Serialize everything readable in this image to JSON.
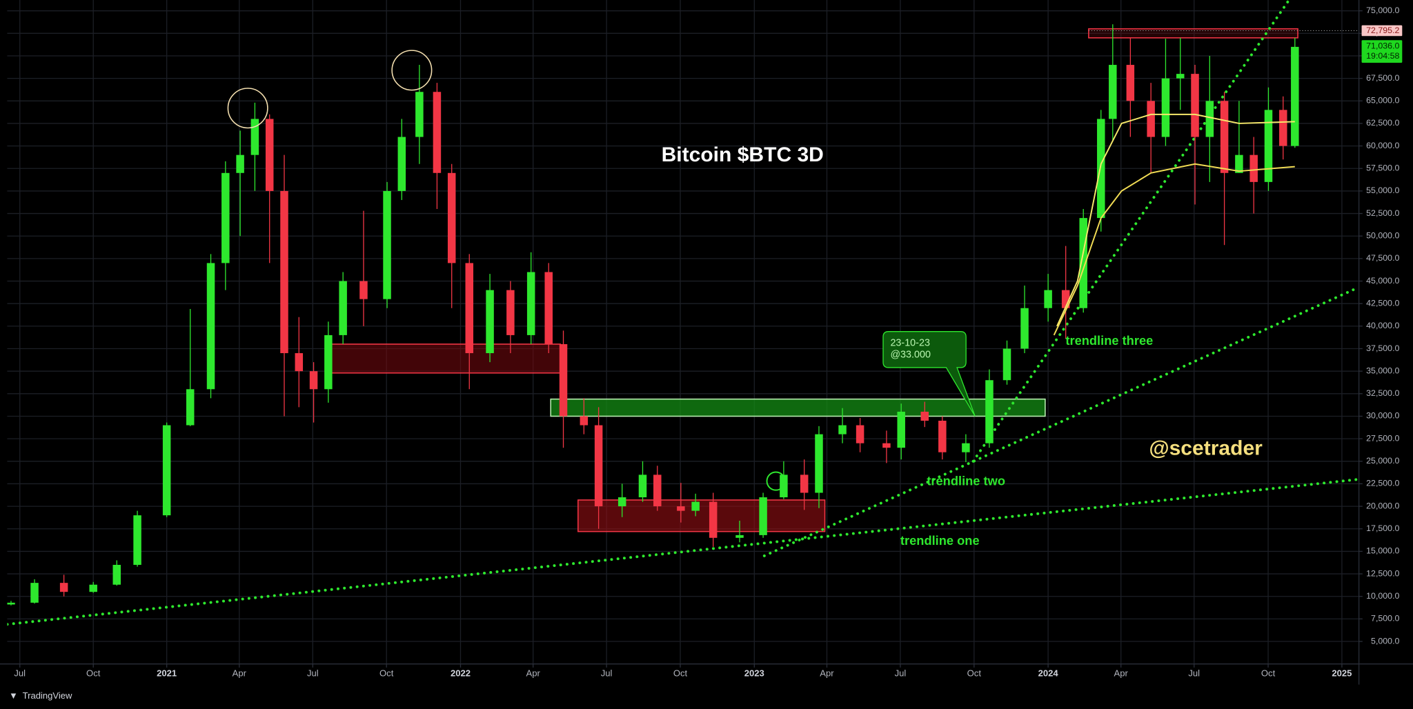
{
  "chart_data": {
    "type": "candlestick",
    "title": "Bitcoin $BTC 3D",
    "watermark": "@scetrader",
    "up_color": "#2ee82e",
    "down_color": "#f23645",
    "grid": true,
    "xlim": [
      2020.457,
      2025.058
    ],
    "ylim": [
      2500,
      76200
    ],
    "xticks": [
      {
        "value": 2020.5,
        "label": "Jul"
      },
      {
        "value": 2020.75,
        "label": "Oct"
      },
      2021,
      {
        "value": 2021.247,
        "label": "Apr"
      },
      {
        "value": 2021.497,
        "label": "Jul"
      },
      {
        "value": 2021.748,
        "label": "Oct"
      },
      2022,
      {
        "value": 2022.247,
        "label": "Apr"
      },
      {
        "value": 2022.497,
        "label": "Jul"
      },
      {
        "value": 2022.748,
        "label": "Oct"
      },
      2023,
      {
        "value": 2023.247,
        "label": "Apr"
      },
      {
        "value": 2023.497,
        "label": "Jul"
      },
      {
        "value": 2023.748,
        "label": "Oct"
      },
      2024,
      {
        "value": 2024.248,
        "label": "Apr"
      },
      {
        "value": 2024.497,
        "label": "Jul"
      },
      {
        "value": 2024.749,
        "label": "Oct"
      },
      2025
    ],
    "yticks": [
      {
        "value": 5000,
        "label": "5,000.0"
      },
      {
        "value": 7500,
        "label": "7,500.0"
      },
      {
        "value": 10000,
        "label": "10,000.0"
      },
      {
        "value": 12500,
        "label": "12,500.0"
      },
      {
        "value": 15000,
        "label": "15,000.0"
      },
      {
        "value": 17500,
        "label": "17,500.0"
      },
      {
        "value": 20000,
        "label": "20,000.0"
      },
      {
        "value": 22500,
        "label": "22,500.0"
      },
      {
        "value": 25000,
        "label": "25,000.0"
      },
      {
        "value": 27500,
        "label": "27,500.0"
      },
      {
        "value": 30000,
        "label": "30,000.0"
      },
      {
        "value": 32500,
        "label": "32,500.0"
      },
      {
        "value": 35000,
        "label": "35,000.0"
      },
      {
        "value": 37500,
        "label": "37,500.0"
      },
      {
        "value": 40000,
        "label": "40,000.0"
      },
      {
        "value": 42500,
        "label": "42,500.0"
      },
      {
        "value": 45000,
        "label": "45,000.0"
      },
      {
        "value": 47500,
        "label": "47,500.0"
      },
      {
        "value": 50000,
        "label": "50,000.0"
      },
      {
        "value": 52500,
        "label": "52,500.0"
      },
      {
        "value": 55000,
        "label": "55,000.0"
      },
      {
        "value": 57500,
        "label": "57,500.0"
      },
      {
        "value": 60000,
        "label": "60,000.0"
      },
      {
        "value": 62500,
        "label": "62,500.0"
      },
      {
        "value": 65000,
        "label": "65,000.0"
      },
      {
        "value": 67500,
        "label": "67,500.0"
      },
      {
        "value": 70000,
        "label": "70,000.0"
      },
      {
        "value": 72500,
        "label": "72,500.0"
      },
      {
        "value": 75000,
        "label": "75,000.0"
      }
    ],
    "x": [
      2020.47,
      2020.55,
      2020.65,
      2020.75,
      2020.83,
      2020.9,
      2021.0,
      2021.08,
      2021.15,
      2021.2,
      2021.25,
      2021.3,
      2021.35,
      2021.4,
      2021.45,
      2021.5,
      2021.55,
      2021.6,
      2021.67,
      2021.75,
      2021.8,
      2021.86,
      2021.92,
      2021.97,
      2022.03,
      2022.1,
      2022.17,
      2022.24,
      2022.3,
      2022.35,
      2022.42,
      2022.47,
      2022.55,
      2022.62,
      2022.67,
      2022.75,
      2022.8,
      2022.86,
      2022.95,
      2023.03,
      2023.1,
      2023.17,
      2023.22,
      2023.3,
      2023.36,
      2023.45,
      2023.5,
      2023.58,
      2023.64,
      2023.72,
      2023.8,
      2023.86,
      2023.92,
      2024.0,
      2024.06,
      2024.12,
      2024.18,
      2024.22,
      2024.28,
      2024.35,
      2024.4,
      2024.45,
      2024.5,
      2024.55,
      2024.6,
      2024.65,
      2024.7,
      2024.75,
      2024.8,
      2024.84
    ],
    "open": [
      9100,
      9300,
      11500,
      10500,
      11300,
      13500,
      19000,
      29000,
      33000,
      47000,
      57000,
      59000,
      63000,
      55000,
      37000,
      35000,
      33000,
      39000,
      45000,
      43000,
      55000,
      61000,
      66000,
      57000,
      47000,
      37000,
      44000,
      39000,
      46000,
      38000,
      30000,
      29000,
      20000,
      21000,
      23500,
      20000,
      19500,
      20500,
      16500,
      16800,
      21000,
      23500,
      21500,
      28000,
      29000,
      27000,
      26500,
      30500,
      29500,
      26000,
      27000,
      34000,
      37500,
      42000,
      44000,
      42000,
      52000,
      63000,
      69000,
      65000,
      61000,
      67500,
      68000,
      61000,
      65000,
      57000,
      59000,
      56000,
      64000,
      60000
    ],
    "high": [
      9500,
      11900,
      12400,
      11600,
      14000,
      19500,
      29300,
      41900,
      48000,
      58300,
      61700,
      64800,
      63500,
      59000,
      41000,
      36000,
      40500,
      46000,
      52800,
      56000,
      63000,
      69000,
      67000,
      58000,
      48000,
      45800,
      45000,
      48200,
      47000,
      39500,
      32000,
      31000,
      22500,
      25000,
      24500,
      22600,
      21400,
      21500,
      18400,
      21500,
      25000,
      25200,
      28900,
      30900,
      29800,
      28400,
      31400,
      31600,
      30000,
      28000,
      35200,
      38400,
      44500,
      45800,
      48900,
      53000,
      64000,
      73500,
      72000,
      67000,
      71900,
      72000,
      69000,
      70000,
      66000,
      65000,
      61000,
      66500,
      65500,
      72000
    ],
    "low": [
      9000,
      9200,
      10000,
      10400,
      11200,
      13300,
      18800,
      28900,
      32000,
      44000,
      50000,
      55000,
      47000,
      30000,
      31000,
      29300,
      31500,
      38000,
      40000,
      42000,
      54000,
      58000,
      53000,
      42000,
      33000,
      36000,
      37000,
      38000,
      37000,
      26500,
      28000,
      17500,
      18800,
      20500,
      19500,
      18200,
      18900,
      15500,
      16000,
      16500,
      20800,
      19600,
      19800,
      27000,
      26000,
      24800,
      25200,
      28800,
      25200,
      24900,
      26500,
      33500,
      37000,
      40500,
      38600,
      41500,
      50500,
      60500,
      61000,
      57000,
      60000,
      64000,
      53500,
      56000,
      49000,
      57000,
      52500,
      55000,
      58500,
      59800
    ],
    "close": [
      9300,
      11500,
      10500,
      11300,
      13500,
      19000,
      29000,
      33000,
      47000,
      57000,
      59000,
      63000,
      55000,
      37000,
      35000,
      33000,
      39000,
      45000,
      43000,
      55000,
      61000,
      66000,
      57000,
      47000,
      37000,
      44000,
      39000,
      46000,
      38000,
      30000,
      29000,
      20000,
      21000,
      23500,
      20000,
      19500,
      20500,
      16500,
      16800,
      21000,
      23500,
      21500,
      28000,
      29000,
      27000,
      26500,
      30500,
      29500,
      26000,
      27000,
      34000,
      37500,
      42000,
      44000,
      42000,
      52000,
      63000,
      69000,
      65000,
      61000,
      67500,
      68000,
      61000,
      65000,
      57000,
      59000,
      56000,
      64000,
      60000,
      71000
    ],
    "lines": [
      {
        "color": "#f7e96b",
        "x": [
          2024.03,
          2024.1,
          2024.18,
          2024.25,
          2024.35,
          2024.5,
          2024.65,
          2024.84
        ],
        "values": [
          40000,
          45000,
          58000,
          62500,
          63500,
          63500,
          62500,
          62700
        ]
      },
      {
        "color": "#f2dd55",
        "x": [
          2024.02,
          2024.1,
          2024.18,
          2024.25,
          2024.35,
          2024.5,
          2024.65,
          2024.84
        ],
        "values": [
          39000,
          44500,
          52000,
          55000,
          57000,
          58000,
          57200,
          57700
        ]
      }
    ],
    "trendlines": [
      {
        "label": "trendline one",
        "color": "#2ee82e",
        "x": [
          2020.457,
          2025.058
        ],
        "y": [
          6900,
          23000
        ]
      },
      {
        "label": "trendline two",
        "color": "#2ee82e",
        "x": [
          2023.034,
          2025.05
        ],
        "y": [
          14500,
          44200
        ]
      },
      {
        "label": "trendline three",
        "color": "#2ee82e",
        "x": [
          2023.745,
          2024.82
        ],
        "y": [
          25000,
          76200
        ]
      }
    ],
    "zones": [
      {
        "color": "#f23645",
        "fill": "rgba(120,10,15,0.55)",
        "x": [
          2021.546,
          2022.34
        ],
        "y": [
          34800,
          38000
        ]
      },
      {
        "color": "#b8f0b0",
        "fill": "rgba(20,140,20,0.75)",
        "x": [
          2022.307,
          2023.99
        ],
        "y": [
          30000,
          31900
        ]
      },
      {
        "color": "#f23645",
        "fill": "rgba(150,15,20,0.6)",
        "x": [
          2022.4,
          2023.24
        ],
        "y": [
          17200,
          20700
        ]
      },
      {
        "color": "#f23645",
        "fill": "rgba(120,10,15,0.3)",
        "x": [
          2024.138,
          2024.85
        ],
        "y": [
          72000,
          73000
        ]
      }
    ],
    "callout": {
      "date": "23-10-23",
      "price": "@33.000"
    },
    "alert_price": {
      "value": 72795.2,
      "label": "72,795.2"
    },
    "last_price": {
      "value": 71036,
      "label": "71,036.0"
    },
    "countdown": "19:04:58"
  },
  "footer": {
    "brand": "TradingView"
  }
}
